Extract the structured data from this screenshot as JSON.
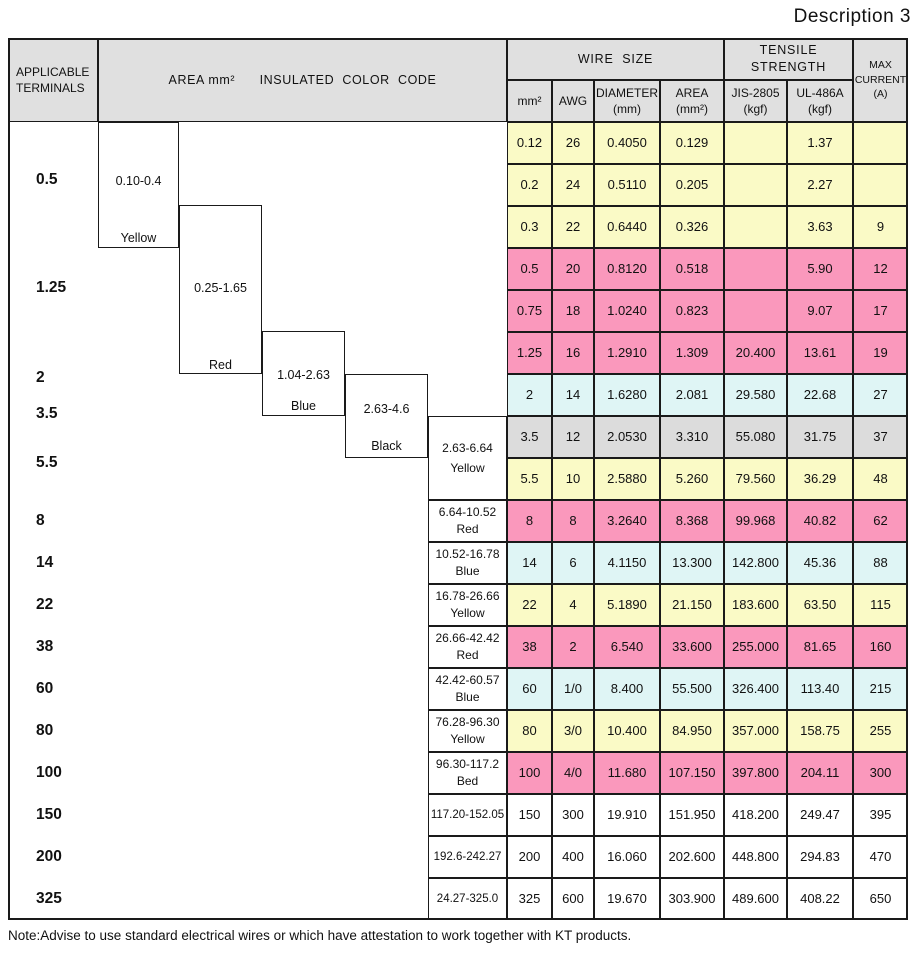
{
  "title": "Description 3",
  "note": "Note:Advise to use standard electrical wires or which have attestation to work together with KT products.",
  "header": {
    "applicable_terminals": "APPLICABLE\nTERMINALS",
    "area_insulated": "AREA mm²      INSULATED  COLOR  CODE",
    "wire_size": "WIRE  SIZE",
    "tensile_strength": "TENSILE STRENGTH",
    "max_current": "MAX\nCURRENT\n(A)",
    "sub": {
      "mm2": "mm²",
      "awg": "AWG",
      "diameter": "DIAMETER\n(mm)",
      "area": "AREA\n(mm²)",
      "jis": "JIS-2805\n(kgf)",
      "ul": "UL-486A\n(kgf)"
    }
  },
  "terminals": [
    "0.5",
    "1.25",
    "2",
    "3.5",
    "5.5",
    "8",
    "14",
    "22",
    "38",
    "60",
    "80",
    "100",
    "150",
    "200",
    "325"
  ],
  "stair_boxes": [
    {
      "range": "0.10-0.4",
      "color": "Yellow"
    },
    {
      "range": "0.25-1.65",
      "color": "Red"
    },
    {
      "range": "1.04-2.63",
      "color": "Blue"
    },
    {
      "range": "2.63-4.6",
      "color": "Black"
    }
  ],
  "color_labels": [
    {
      "range": "2.63-6.64",
      "color": "Yellow"
    },
    {
      "range": "6.64-10.52",
      "color": "Red"
    },
    {
      "range": "10.52-16.78",
      "color": "Blue"
    },
    {
      "range": "16.78-26.66",
      "color": "Yellow"
    },
    {
      "range": "26.66-42.42",
      "color": "Red"
    },
    {
      "range": "42.42-60.57",
      "color": "Blue"
    },
    {
      "range": "76.28-96.30",
      "color": "Yellow"
    },
    {
      "range": "96.30-117.2",
      "color": "Bed"
    },
    {
      "range": "117.20-152.05",
      "color": ""
    },
    {
      "range": "192.6-242.27",
      "color": ""
    },
    {
      "range": "24.27-325.0",
      "color": ""
    }
  ],
  "rows": [
    {
      "cells": [
        "0.12",
        "26",
        "0.4050",
        "0.129",
        "",
        "1.37",
        ""
      ],
      "bg": "yellow"
    },
    {
      "cells": [
        "0.2",
        "24",
        "0.5110",
        "0.205",
        "",
        "2.27",
        ""
      ],
      "bg": "yellow"
    },
    {
      "cells": [
        "0.3",
        "22",
        "0.6440",
        "0.326",
        "",
        "3.63",
        "9"
      ],
      "bg": "yellow"
    },
    {
      "cells": [
        "0.5",
        "20",
        "0.8120",
        "0.518",
        "",
        "5.90",
        "12"
      ],
      "bg": "pink"
    },
    {
      "cells": [
        "0.75",
        "18",
        "1.0240",
        "0.823",
        "",
        "9.07",
        "17"
      ],
      "bg": "pink"
    },
    {
      "cells": [
        "1.25",
        "16",
        "1.2910",
        "1.309",
        "20.400",
        "13.61",
        "19"
      ],
      "bg": "pink"
    },
    {
      "cells": [
        "2",
        "14",
        "1.6280",
        "2.081",
        "29.580",
        "22.68",
        "27"
      ],
      "bg": "cyan"
    },
    {
      "cells": [
        "3.5",
        "12",
        "2.0530",
        "3.310",
        "55.080",
        "31.75",
        "37"
      ],
      "bg": "gray"
    },
    {
      "cells": [
        "5.5",
        "10",
        "2.5880",
        "5.260",
        "79.560",
        "36.29",
        "48"
      ],
      "bg": "yellow"
    },
    {
      "cells": [
        "8",
        "8",
        "3.2640",
        "8.368",
        "99.968",
        "40.82",
        "62"
      ],
      "bg": "pink"
    },
    {
      "cells": [
        "14",
        "6",
        "4.1150",
        "13.300",
        "142.800",
        "45.36",
        "88"
      ],
      "bg": "cyan"
    },
    {
      "cells": [
        "22",
        "4",
        "5.1890",
        "21.150",
        "183.600",
        "63.50",
        "115"
      ],
      "bg": "yellow"
    },
    {
      "cells": [
        "38",
        "2",
        "6.540",
        "33.600",
        "255.000",
        "81.65",
        "160"
      ],
      "bg": "pink"
    },
    {
      "cells": [
        "60",
        "1/0",
        "8.400",
        "55.500",
        "326.400",
        "113.40",
        "215"
      ],
      "bg": "cyan"
    },
    {
      "cells": [
        "80",
        "3/0",
        "10.400",
        "84.950",
        "357.000",
        "158.75",
        "255"
      ],
      "bg": "yellow"
    },
    {
      "cells": [
        "100",
        "4/0",
        "11.680",
        "107.150",
        "397.800",
        "204.11",
        "300"
      ],
      "bg": "pink"
    },
    {
      "cells": [
        "150",
        "300",
        "19.910",
        "151.950",
        "418.200",
        "249.47",
        "395"
      ],
      "bg": "white"
    },
    {
      "cells": [
        "200",
        "400",
        "16.060",
        "202.600",
        "448.800",
        "294.83",
        "470"
      ],
      "bg": "white"
    },
    {
      "cells": [
        "325",
        "600",
        "19.670",
        "303.900",
        "489.600",
        "408.22",
        "650"
      ],
      "bg": "white"
    }
  ],
  "colors": {
    "yellow": "#FAFAC6",
    "pink": "#FA98BC",
    "cyan": "#DFF5F5",
    "gray": "#DCDCDC",
    "white": "#FFFFFF",
    "header": "#E0E0E0"
  }
}
